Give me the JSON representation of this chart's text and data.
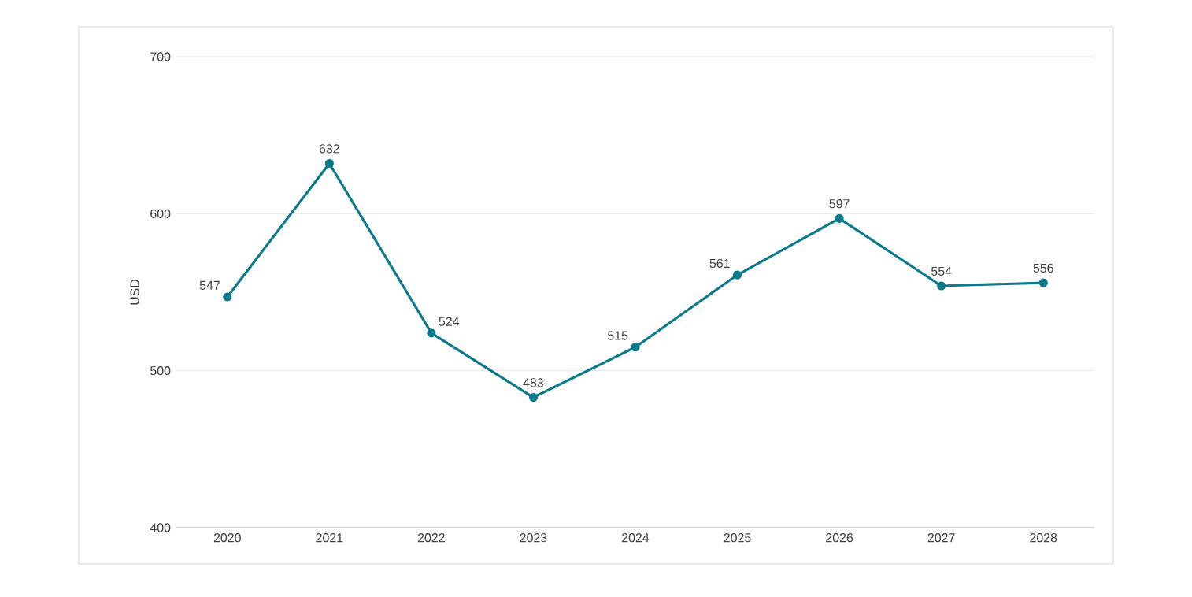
{
  "chart_data": {
    "type": "line",
    "ylabel": "USD",
    "categories": [
      "2020",
      "2021",
      "2022",
      "2023",
      "2024",
      "2025",
      "2026",
      "2027",
      "2028"
    ],
    "values": [
      547,
      632,
      524,
      483,
      515,
      561,
      597,
      554,
      556
    ],
    "color": "#0a7a8c",
    "ylim": [
      400,
      700
    ],
    "yticks": [
      400,
      500,
      600,
      700
    ],
    "grid": "y",
    "marker": "circle",
    "line_style": "solid",
    "data_labels": true
  }
}
